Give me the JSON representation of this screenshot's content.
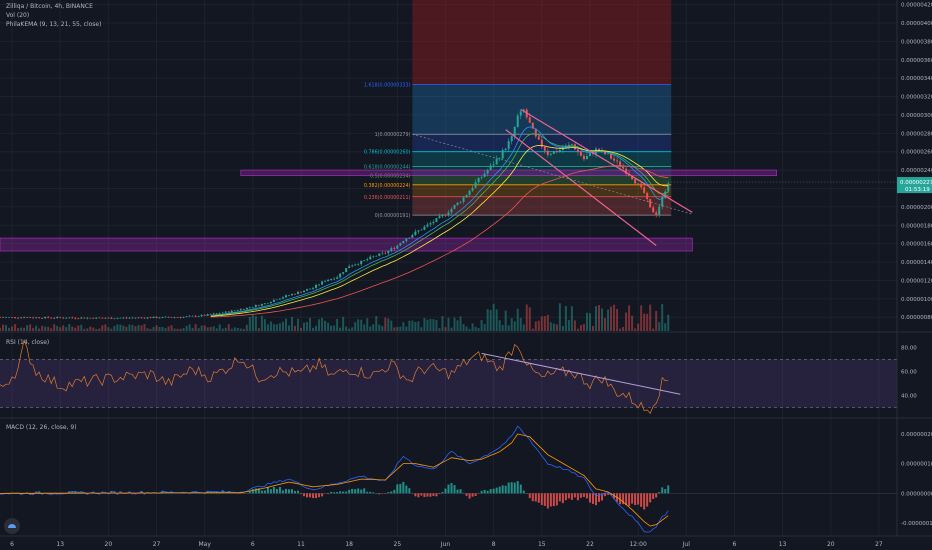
{
  "header": {
    "title": "Zilliqa / Bitcoin, 4h, BINANCE",
    "vol": "Vol (20)",
    "ema": "PhilaKEMA (9, 13, 21, 55, close)"
  },
  "colors": {
    "background": "#131722",
    "grid": "#1e222d",
    "bull": "#26a69a",
    "bear": "#ef5350",
    "rsi_line": "#e07a2e",
    "rsi_band": "#7e57c2",
    "macd_line": "#2962ff",
    "signal_line": "#ff9800",
    "trendline": "#f06292",
    "zone": "#9c27b0"
  },
  "chart_data": [
    {
      "type": "candlestick",
      "symbol": "ZIL/BTC",
      "interval": "4h",
      "exchange": "BINANCE",
      "ylim": [
        6.5e-07,
        4.25e-06
      ],
      "price_axis_labels": [
        "0.00000420",
        "0.00000400",
        "0.00000380",
        "0.00000360",
        "0.00000340",
        "0.00000320",
        "0.00000300",
        "0.00000280",
        "0.00000260",
        "0.00000240",
        "0.00000220",
        "0.00000200",
        "0.00000180",
        "0.00000160",
        "0.00000140",
        "0.00000120",
        "0.00000100",
        "0.00000080"
      ],
      "current_price": "0.00000227",
      "countdown": "01:53:19",
      "price_path": [
        [
          0,
          8e-07
        ],
        [
          18,
          7.9e-07
        ],
        [
          30,
          8e-07
        ],
        [
          34,
          8.2e-07
        ],
        [
          38,
          8.6e-07
        ],
        [
          41,
          9e-07
        ],
        [
          44,
          9.5e-07
        ],
        [
          46,
          1e-06
        ],
        [
          48,
          1.04e-06
        ],
        [
          50,
          1.08e-06
        ],
        [
          52,
          1.12e-06
        ],
        [
          54,
          1.2e-06
        ],
        [
          56,
          1.24e-06
        ],
        [
          57,
          1.3e-06
        ],
        [
          58,
          1.36e-06
        ],
        [
          60,
          1.4e-06
        ],
        [
          62,
          1.46e-06
        ],
        [
          64,
          1.5e-06
        ],
        [
          66,
          1.58e-06
        ],
        [
          67,
          1.64e-06
        ],
        [
          69,
          1.72e-06
        ],
        [
          71,
          1.8e-06
        ],
        [
          73,
          1.88e-06
        ],
        [
          75,
          1.98e-06
        ],
        [
          77,
          2.1e-06
        ],
        [
          79,
          2.26e-06
        ],
        [
          81,
          2.4e-06
        ],
        [
          83,
          2.55e-06
        ],
        [
          85,
          2.75e-06
        ],
        [
          86,
          2.98e-06
        ],
        [
          87,
          3.05e-06
        ],
        [
          89,
          2.75e-06
        ],
        [
          91,
          2.58e-06
        ],
        [
          93,
          2.62e-06
        ],
        [
          95,
          2.68e-06
        ],
        [
          97,
          2.52e-06
        ],
        [
          99,
          2.62e-06
        ],
        [
          101,
          2.56e-06
        ],
        [
          103,
          2.45e-06
        ],
        [
          105,
          2.32e-06
        ],
        [
          107,
          2.15e-06
        ],
        [
          108,
          1.98e-06
        ],
        [
          109,
          1.92e-06
        ],
        [
          110,
          2.1e-06
        ],
        [
          111,
          2.27e-06
        ]
      ],
      "fibonacci": [
        {
          "label": "0(0.00000191)",
          "price": 1.91e-06
        },
        {
          "label": "0.236(0.00000211)",
          "price": 2.11e-06
        },
        {
          "label": "0.382(0.00000224)",
          "price": 2.24e-06
        },
        {
          "label": "0.5(0.00000234)",
          "price": 2.34e-06
        },
        {
          "label": "0.618(0.00000244)",
          "price": 2.44e-06
        },
        {
          "label": "0.786(0.00000260)",
          "price": 2.6e-06
        },
        {
          "label": "1(0.00000279)",
          "price": 2.79e-06
        },
        {
          "label": "1.618(0.00000333)",
          "price": 3.33e-06
        }
      ],
      "zones": [
        {
          "from": 2.34e-06,
          "to": 2.4e-06
        },
        {
          "from": 1.52e-06,
          "to": 1.66e-06
        }
      ]
    },
    {
      "type": "line",
      "name": "RSI (14, close)",
      "ylim": [
        22,
        92
      ],
      "band": [
        30,
        70
      ],
      "axis_labels": [
        "80.00",
        "60.00",
        "40.00"
      ],
      "path": [
        [
          0,
          45
        ],
        [
          3,
          62
        ],
        [
          4,
          82
        ],
        [
          6,
          60
        ],
        [
          10,
          48
        ],
        [
          15,
          52
        ],
        [
          20,
          55
        ],
        [
          25,
          58
        ],
        [
          28,
          50
        ],
        [
          32,
          62
        ],
        [
          35,
          55
        ],
        [
          38,
          64
        ],
        [
          40,
          72
        ],
        [
          43,
          55
        ],
        [
          46,
          60
        ],
        [
          50,
          58
        ],
        [
          53,
          66
        ],
        [
          55,
          56
        ],
        [
          58,
          62
        ],
        [
          62,
          57
        ],
        [
          65,
          66
        ],
        [
          68,
          52
        ],
        [
          70,
          62
        ],
        [
          72,
          62
        ],
        [
          75,
          58
        ],
        [
          78,
          70
        ],
        [
          80,
          73
        ],
        [
          83,
          62
        ],
        [
          85,
          78
        ],
        [
          86,
          84
        ],
        [
          88,
          62
        ],
        [
          90,
          54
        ],
        [
          92,
          58
        ],
        [
          95,
          60
        ],
        [
          98,
          50
        ],
        [
          100,
          55
        ],
        [
          102,
          44
        ],
        [
          104,
          40
        ],
        [
          106,
          33
        ],
        [
          107,
          28
        ],
        [
          108,
          30
        ],
        [
          109,
          38
        ],
        [
          110,
          50
        ],
        [
          111,
          54
        ]
      ]
    },
    {
      "type": "histogram+line",
      "name": "MACD (12, 26, close, 9)",
      "ylim": [
        -1.4e-08,
        2.5e-08
      ],
      "axis_labels": [
        "0.00000020",
        "0.00000010",
        "0.00000000",
        "-0.00000010"
      ],
      "macd_path": [
        [
          0,
          0
        ],
        [
          40,
          5e-10
        ],
        [
          44,
          2.8e-09
        ],
        [
          48,
          4.8e-09
        ],
        [
          52,
          1.2e-09
        ],
        [
          56,
          3.5e-09
        ],
        [
          60,
          5.8e-09
        ],
        [
          64,
          4e-09
        ],
        [
          67,
          1.25e-08
        ],
        [
          69,
          9.5e-09
        ],
        [
          72,
          8e-09
        ],
        [
          75,
          1.4e-08
        ],
        [
          78,
          1e-08
        ],
        [
          80,
          1.2e-08
        ],
        [
          83,
          1.55e-08
        ],
        [
          85,
          1.9e-08
        ],
        [
          86,
          2.25e-08
        ],
        [
          88,
          1.8e-08
        ],
        [
          91,
          1e-08
        ],
        [
          94,
          8e-09
        ],
        [
          97,
          5e-09
        ],
        [
          99,
          -1e-09
        ],
        [
          101,
          5e-10
        ],
        [
          103,
          -4e-09
        ],
        [
          105,
          -8e-09
        ],
        [
          107,
          -1.25e-08
        ],
        [
          108,
          -1.3e-08
        ],
        [
          109,
          -1.1e-08
        ],
        [
          110,
          -8e-09
        ],
        [
          111,
          -6e-09
        ]
      ],
      "signal_path": [
        [
          0,
          0
        ],
        [
          40,
          2e-10
        ],
        [
          44,
          1.8e-09
        ],
        [
          48,
          3.8e-09
        ],
        [
          52,
          2.2e-09
        ],
        [
          56,
          3e-09
        ],
        [
          60,
          4.8e-09
        ],
        [
          64,
          4.5e-09
        ],
        [
          67,
          1e-08
        ],
        [
          69,
          1e-08
        ],
        [
          72,
          8.8e-09
        ],
        [
          75,
          1.2e-08
        ],
        [
          78,
          1.1e-08
        ],
        [
          80,
          1.15e-08
        ],
        [
          83,
          1.4e-08
        ],
        [
          85,
          1.7e-08
        ],
        [
          86,
          2e-08
        ],
        [
          88,
          1.9e-08
        ],
        [
          91,
          1.3e-08
        ],
        [
          94,
          9.5e-09
        ],
        [
          97,
          6e-09
        ],
        [
          99,
          1.5e-09
        ],
        [
          101,
          5e-10
        ],
        [
          103,
          -2e-09
        ],
        [
          105,
          -5.5e-09
        ],
        [
          107,
          -9.5e-09
        ],
        [
          108,
          -1.1e-08
        ],
        [
          109,
          -1.05e-08
        ],
        [
          110,
          -9e-09
        ],
        [
          111,
          -7.5e-09
        ]
      ]
    }
  ],
  "x_axis": {
    "labels": [
      "6",
      "13",
      "20",
      "27",
      "May",
      "6",
      "11",
      "18",
      "25",
      "Jun",
      "8",
      "15",
      "22",
      "12:00",
      "Jul",
      "6",
      "13",
      "20",
      "27"
    ],
    "xlim": [
      0,
      149
    ]
  }
}
